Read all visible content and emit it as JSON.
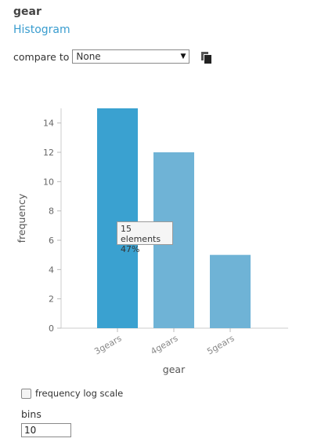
{
  "header": {
    "title": "gear",
    "subtitle": "Histogram"
  },
  "compare": {
    "label": "compare to",
    "selected": "None"
  },
  "chart_data": {
    "type": "bar",
    "categories": [
      "3gears",
      "4gears",
      "5gears"
    ],
    "values": [
      15,
      12,
      5
    ],
    "xlabel": "gear",
    "ylabel": "frequency",
    "ylim": [
      0,
      15
    ],
    "yticks": [
      0,
      2,
      4,
      6,
      8,
      10,
      12,
      14
    ],
    "colors": [
      "#3aa1d0",
      "#6fb3d6",
      "#6fb3d6"
    ]
  },
  "tooltip": {
    "line1": "15 elements",
    "line2": "47%"
  },
  "options": {
    "log_scale_label": "frequency log scale",
    "bins_label": "bins",
    "bins_value": "10"
  }
}
